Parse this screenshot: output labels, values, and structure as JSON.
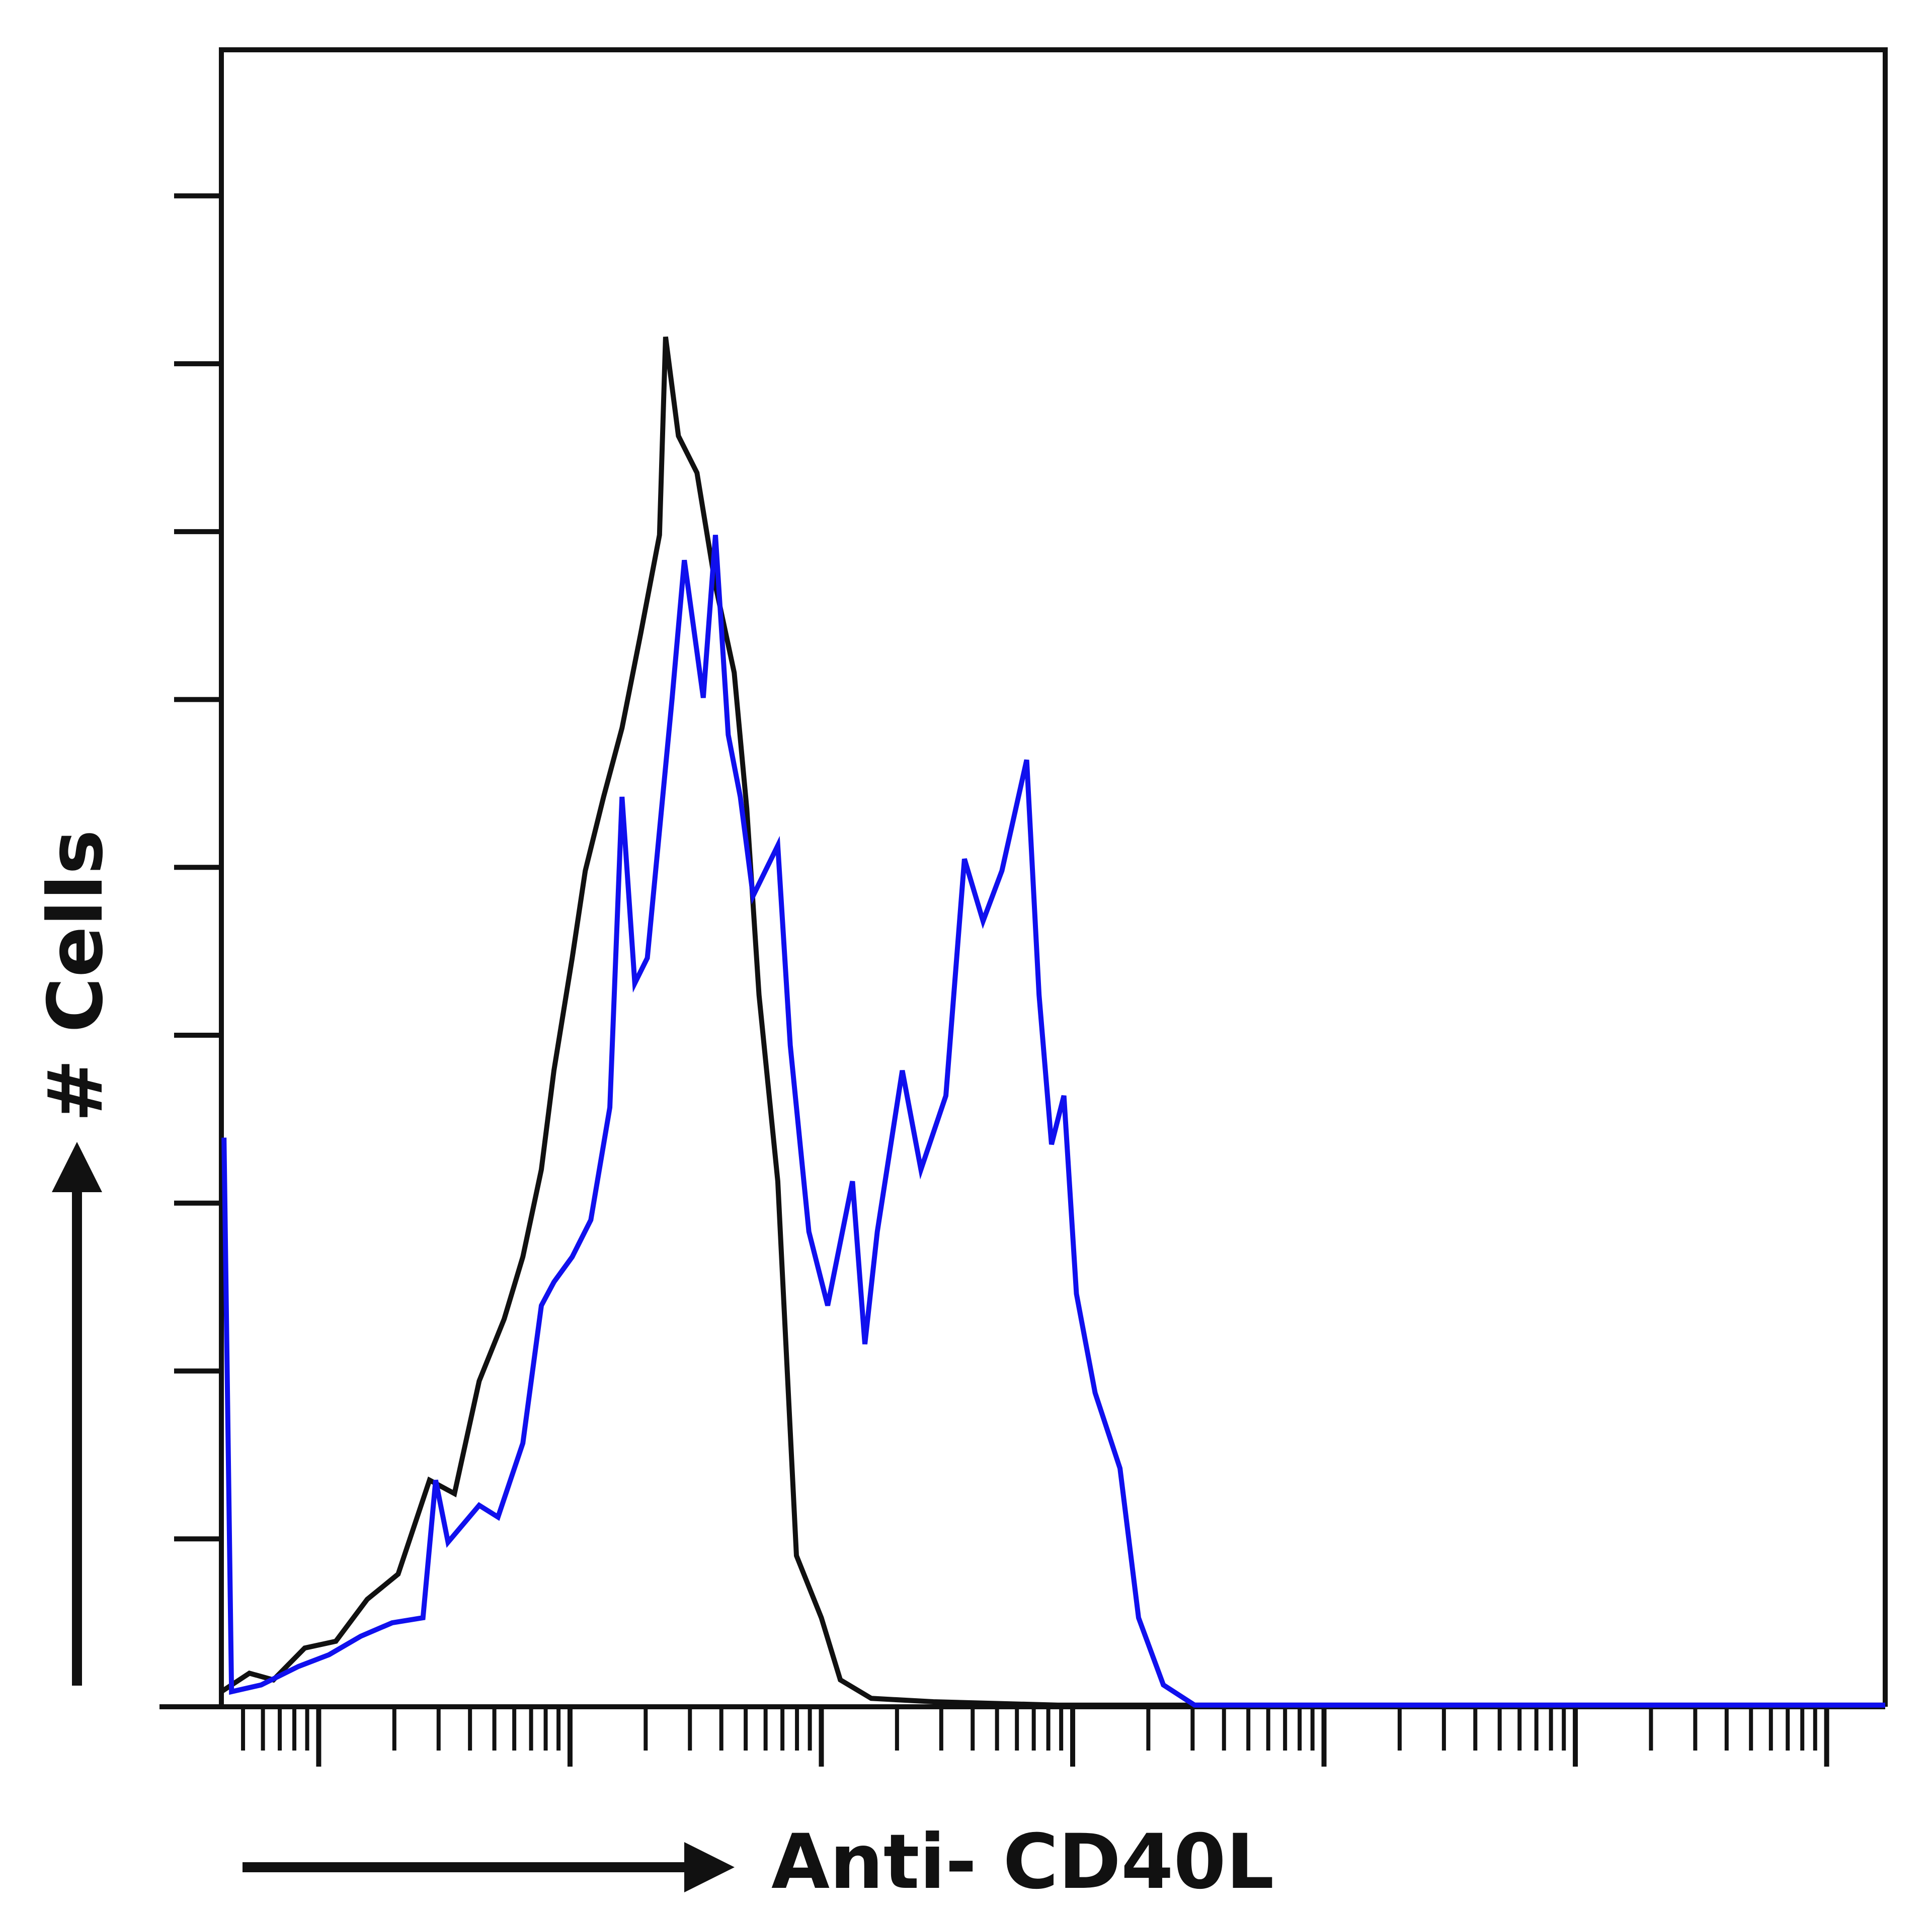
{
  "chart_data": {
    "type": "line",
    "xscale": "log",
    "xlabel": "Anti- CD40L",
    "ylabel": "# Cells",
    "xlim": [
      0.41,
      1710000
    ],
    "ylim": [
      0,
      9.87
    ],
    "xticks": [
      1,
      10,
      100,
      1000,
      10000,
      100000,
      1000000
    ],
    "xminorticks": [
      0.5,
      0.6,
      0.7,
      0.8,
      0.9,
      2,
      3,
      4,
      5,
      6,
      7,
      8,
      9,
      20,
      30,
      40,
      50,
      60,
      70,
      80,
      90,
      200,
      300,
      400,
      500,
      600,
      700,
      800,
      900,
      2000,
      3000,
      4000,
      5000,
      6000,
      7000,
      8000,
      9000,
      20000,
      30000,
      40000,
      50000,
      60000,
      70000,
      80000,
      90000,
      200000,
      300000,
      400000,
      500000,
      600000,
      700000,
      800000,
      900000
    ],
    "yticks": [
      0,
      1,
      2,
      3,
      4,
      5,
      6,
      7,
      8,
      9
    ],
    "series": [
      {
        "color": "#111111",
        "x": [
          0.41,
          0.53,
          0.66,
          0.88,
          1.17,
          1.56,
          2.07,
          2.76,
          3.47,
          4.35,
          5.47,
          6.49,
          7.69,
          8.63,
          10.2,
          11.5,
          13.6,
          16.1,
          19.1,
          22.7,
          24.0,
          27.0,
          32.0,
          37.9,
          45.0,
          50.5,
          56.5,
          67.1,
          79.6,
          100,
          119,
          158,
          279,
          873,
          4819,
          1710000
        ],
        "values": [
          0.09,
          0.2,
          0.16,
          0.35,
          0.39,
          0.64,
          0.79,
          1.35,
          1.27,
          1.94,
          2.31,
          2.68,
          3.2,
          3.79,
          4.46,
          4.98,
          5.42,
          5.83,
          6.39,
          6.98,
          8.16,
          7.57,
          7.35,
          6.68,
          6.16,
          5.35,
          4.24,
          3.13,
          0.9,
          0.53,
          0.16,
          0.05,
          0.03,
          0.01,
          0.01,
          0.01
        ]
      },
      {
        "color": "#1010ee",
        "x": [
          0.42,
          0.45,
          0.59,
          0.83,
          1.1,
          1.47,
          1.96,
          2.6,
          2.92,
          3.27,
          4.35,
          5.17,
          6.49,
          7.69,
          8.63,
          10.2,
          12.1,
          14.4,
          16.1,
          18.1,
          20.3,
          25.5,
          28.5,
          33.9,
          37.9,
          42.6,
          47.6,
          53.5,
          67.1,
          75.2,
          89.2,
          106,
          133,
          149,
          167,
          210,
          249,
          313,
          371,
          440,
          523,
          656,
          735,
          824,
          923,
          1035,
          1228,
          1543,
          1829,
          2296,
          3055,
          1710000
        ],
        "values": [
          3.39,
          0.09,
          0.13,
          0.24,
          0.31,
          0.42,
          0.5,
          0.53,
          1.35,
          0.98,
          1.2,
          1.13,
          1.57,
          2.39,
          2.53,
          2.68,
          2.9,
          3.57,
          5.42,
          4.31,
          4.46,
          6.01,
          6.83,
          6.01,
          6.98,
          5.79,
          5.42,
          4.83,
          5.13,
          3.94,
          2.83,
          2.39,
          3.13,
          2.16,
          2.83,
          3.79,
          3.2,
          3.64,
          5.05,
          4.68,
          4.98,
          5.64,
          4.24,
          3.35,
          3.64,
          2.46,
          1.87,
          1.42,
          0.53,
          0.13,
          0.01,
          0.01
        ]
      }
    ]
  }
}
